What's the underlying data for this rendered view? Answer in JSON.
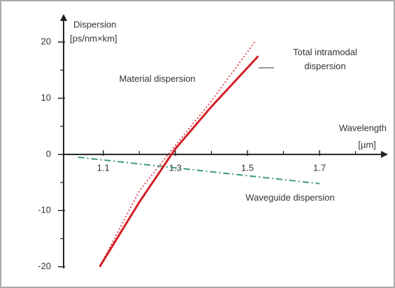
{
  "chart_data": {
    "type": "line",
    "ylabel": [
      "Dispersion",
      "[ps/nm×km]"
    ],
    "xlabel": [
      "Wavelength",
      "[µm]"
    ],
    "xlim": [
      0.99,
      1.89
    ],
    "xticks": [
      1.1,
      1.3,
      1.5,
      1.7
    ],
    "xminorticks": [
      1.2,
      1.4,
      1.6,
      1.8
    ],
    "ylim": [
      -20.3,
      25
    ],
    "yticks": [
      -20,
      -10,
      0,
      10,
      20
    ],
    "yminorticks": [
      -15,
      -5,
      5,
      15
    ],
    "series": [
      {
        "name": "Total intramodal dispersion",
        "color": "#d42026",
        "style": "solid",
        "x": [
          1.09,
          1.2,
          1.3,
          1.4,
          1.53
        ],
        "values": [
          -20,
          -8.5,
          1,
          8.5,
          17.5
        ]
      },
      {
        "name": "Material dispersion",
        "color": "#e0505a",
        "style": "dotted",
        "x": [
          1.09,
          1.2,
          1.28,
          1.4,
          1.52
        ],
        "values": [
          -20,
          -6.5,
          0,
          9.5,
          20
        ]
      },
      {
        "name": "Waveguide dispersion",
        "color": "#3f9a72",
        "style": "dashdot",
        "x": [
          1.03,
          1.7
        ],
        "values": [
          -0.5,
          -5.2
        ]
      }
    ]
  }
}
